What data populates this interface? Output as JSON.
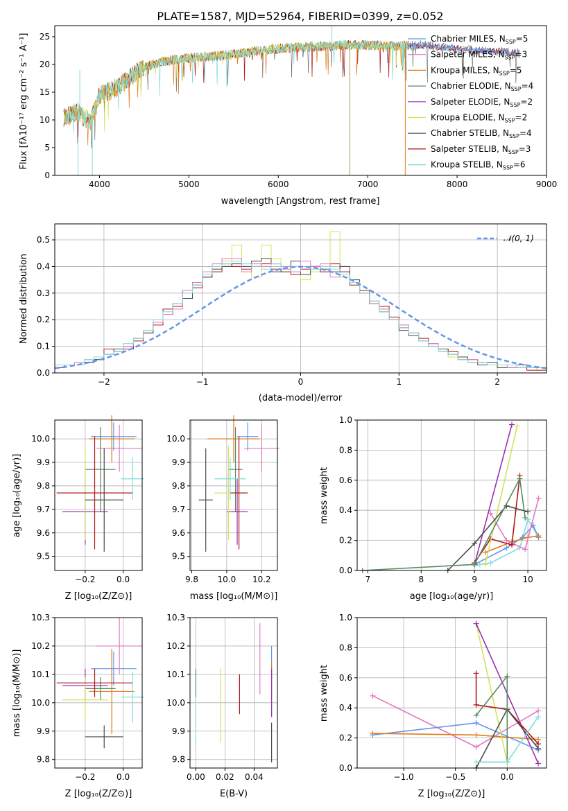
{
  "colors": {
    "Chabrier MILES": "#6495ed",
    "Salpeter MILES": "#e377c2",
    "Kroupa MILES": "#e07b1a",
    "Chabrier ELODIE": "#5a8a63",
    "Salpeter ELODIE": "#9b2fb0",
    "Kroupa ELODIE": "#d2e35a",
    "Chabrier STELIB": "#4a4a4a",
    "Salpeter STELIB": "#b21414",
    "Kroupa STELIB": "#7fdcdc",
    "gauss": "#6495ed"
  },
  "chart_data": [
    {
      "type": "line",
      "title": "PLATE=1587, MJD=52964, FIBERID=0399, z=0.052",
      "xlabel": "wavelength [Angstrom, rest frame]",
      "ylabel": "Flux [fλ10⁻¹⁷ erg cm⁻² s⁻¹ A⁻¹]",
      "xlim": [
        3500,
        9000
      ],
      "ylim": [
        0,
        27
      ],
      "xticks": [
        "4000",
        "5000",
        "6000",
        "7000",
        "8000",
        "9000"
      ],
      "yticks": [
        "0",
        "5",
        "10",
        "15",
        "20",
        "25"
      ],
      "legend_loc": "upper right",
      "legend": [
        {
          "label": "Chabrier MILES, N",
          "n": "5",
          "series": "Chabrier MILES"
        },
        {
          "label": "Salpeter MILES, N",
          "n": "3",
          "series": "Salpeter MILES"
        },
        {
          "label": "Kroupa MILES, N",
          "n": "5",
          "series": "Kroupa MILES"
        },
        {
          "label": "Chabrier ELODIE, N",
          "n": "4",
          "series": "Chabrier ELODIE"
        },
        {
          "label": "Salpeter ELODIE, N",
          "n": "2",
          "series": "Salpeter ELODIE"
        },
        {
          "label": "Kroupa ELODIE, N",
          "n": "2",
          "series": "Kroupa ELODIE"
        },
        {
          "label": "Chabrier STELIB, N",
          "n": "4",
          "series": "Chabrier STELIB"
        },
        {
          "label": "Salpeter STELIB, N",
          "n": "3",
          "series": "Salpeter STELIB"
        },
        {
          "label": "Kroupa STELIB, N",
          "n": "6",
          "series": "Kroupa STELIB"
        }
      ],
      "spectrum_continuum": {
        "x": [
          3600,
          3750,
          3900,
          3950,
          4000,
          4150,
          4300,
          4400,
          4500,
          4700,
          4900,
          5100,
          5300,
          5500,
          5800,
          6100,
          6400,
          6700,
          7000,
          7300,
          7600,
          7900,
          8200,
          8500,
          8700
        ],
        "y": [
          10.5,
          11.5,
          9.5,
          12,
          14.5,
          15.5,
          17,
          18.5,
          19.5,
          20.5,
          21,
          21.3,
          21.5,
          21.8,
          22.5,
          23,
          23.2,
          23.5,
          23.5,
          23.3,
          23.5,
          23.0,
          22.5,
          22.3,
          22.0
        ]
      },
      "spectrum_dips": [
        {
          "x": 3760,
          "y": 0
        },
        {
          "x": 3920,
          "y": 0
        },
        {
          "x": 6800,
          "y": 0
        },
        {
          "x": 7420,
          "y": 0
        },
        {
          "x": 3780,
          "y": 19
        },
        {
          "x": 6600,
          "y": 27
        }
      ]
    },
    {
      "type": "step",
      "xlabel": "(data-model)/error",
      "ylabel": "Normed distribution",
      "xlim": [
        -2.5,
        2.5
      ],
      "ylim": [
        0,
        0.56
      ],
      "xticks": [
        "−2",
        "−1",
        "0",
        "1",
        "2"
      ],
      "yticks": [
        "0.0",
        "0.1",
        "0.2",
        "0.3",
        "0.4",
        "0.5"
      ],
      "legend": "𝒩(0, 1)",
      "bin_width": 0.1,
      "bins_from": -2.5,
      "series_hist": [
        {
          "name": "Kroupa ELODIE",
          "values": [
            0.03,
            0.03,
            0.04,
            0.05,
            0.05,
            0.07,
            0.09,
            0.11,
            0.13,
            0.16,
            0.19,
            0.22,
            0.25,
            0.3,
            0.33,
            0.37,
            0.39,
            0.42,
            0.48,
            0.41,
            0.36,
            0.48,
            0.43,
            0.4,
            0.37,
            0.35,
            0.38,
            0.4,
            0.53,
            0.36,
            0.33,
            0.3,
            0.27,
            0.24,
            0.2,
            0.18,
            0.15,
            0.12,
            0.1,
            0.08,
            0.06,
            0.05,
            0.04,
            0.04,
            0.03,
            0.02,
            0.03,
            0.02,
            0.02,
            0.01
          ]
        },
        {
          "name": "Salpeter STELIB",
          "values": [
            0.02,
            0.03,
            0.03,
            0.04,
            0.05,
            0.09,
            0.08,
            0.09,
            0.12,
            0.15,
            0.18,
            0.24,
            0.25,
            0.31,
            0.32,
            0.36,
            0.38,
            0.41,
            0.4,
            0.39,
            0.4,
            0.41,
            0.39,
            0.38,
            0.37,
            0.39,
            0.4,
            0.38,
            0.41,
            0.38,
            0.33,
            0.31,
            0.26,
            0.25,
            0.21,
            0.17,
            0.15,
            0.13,
            0.1,
            0.09,
            0.08,
            0.05,
            0.05,
            0.04,
            0.03,
            0.03,
            0.03,
            0.02,
            0.01,
            0.01
          ]
        },
        {
          "name": "Chabrier STELIB",
          "values": [
            0.03,
            0.03,
            0.03,
            0.04,
            0.05,
            0.07,
            0.09,
            0.1,
            0.13,
            0.15,
            0.19,
            0.22,
            0.26,
            0.28,
            0.33,
            0.36,
            0.39,
            0.4,
            0.41,
            0.4,
            0.42,
            0.43,
            0.38,
            0.39,
            0.42,
            0.37,
            0.4,
            0.39,
            0.38,
            0.4,
            0.35,
            0.3,
            0.27,
            0.23,
            0.2,
            0.16,
            0.14,
            0.12,
            0.11,
            0.09,
            0.07,
            0.06,
            0.04,
            0.03,
            0.04,
            0.02,
            0.02,
            0.03,
            0.02,
            0.02
          ]
        },
        {
          "name": "Salpeter MILES",
          "values": [
            0.03,
            0.03,
            0.04,
            0.05,
            0.06,
            0.07,
            0.08,
            0.1,
            0.13,
            0.16,
            0.19,
            0.22,
            0.24,
            0.31,
            0.34,
            0.38,
            0.41,
            0.43,
            0.43,
            0.38,
            0.41,
            0.4,
            0.41,
            0.4,
            0.38,
            0.42,
            0.4,
            0.41,
            0.36,
            0.37,
            0.34,
            0.3,
            0.26,
            0.24,
            0.2,
            0.18,
            0.15,
            0.12,
            0.11,
            0.08,
            0.07,
            0.05,
            0.05,
            0.04,
            0.03,
            0.03,
            0.02,
            0.02,
            0.02,
            0.02
          ]
        },
        {
          "name": "Kroupa STELIB",
          "values": [
            0.03,
            0.03,
            0.03,
            0.05,
            0.06,
            0.07,
            0.08,
            0.11,
            0.13,
            0.16,
            0.2,
            0.23,
            0.26,
            0.3,
            0.33,
            0.37,
            0.4,
            0.41,
            0.42,
            0.41,
            0.4,
            0.39,
            0.41,
            0.39,
            0.4,
            0.4,
            0.39,
            0.4,
            0.39,
            0.37,
            0.34,
            0.3,
            0.27,
            0.23,
            0.2,
            0.17,
            0.15,
            0.12,
            0.1,
            0.08,
            0.07,
            0.05,
            0.04,
            0.04,
            0.03,
            0.03,
            0.03,
            0.02,
            0.02,
            0.02
          ]
        }
      ],
      "gaussian": {
        "mu": 0,
        "sigma": 1
      }
    },
    {
      "type": "scatter_errorbar",
      "xlabel": "Z [log₁₀(Z/Z⊙)]",
      "ylabel": "age  [log₁₀(age/yr)]",
      "xlim": [
        -0.36,
        0.1
      ],
      "ylim": [
        9.44,
        10.08
      ],
      "xticks": [
        "−0.2",
        "0.0"
      ],
      "yticks": [
        "9.5",
        "9.6",
        "9.7",
        "9.8",
        "9.9",
        "10.0"
      ]
    },
    {
      "type": "scatter_errorbar",
      "xlabel": "mass [log₁₀(M/M⊙)]",
      "xlim": [
        9.79,
        10.29
      ],
      "ylim": [
        9.44,
        10.08
      ],
      "xticks": [
        "9.8",
        "10.0",
        "10.2"
      ],
      "yticks": [
        "9.5",
        "9.6",
        "9.7",
        "9.8",
        "9.9",
        "10.0"
      ]
    },
    {
      "type": "line",
      "xlabel": "age  [log₁₀(age/yr)]",
      "ylabel": "mass weight",
      "xlim": [
        6.8,
        10.35
      ],
      "ylim": [
        0,
        1
      ],
      "xticks": [
        "7",
        "8",
        "9",
        "10"
      ],
      "yticks": [
        "0.0",
        "0.2",
        "0.4",
        "0.6",
        "0.8",
        "1.0"
      ],
      "series": [
        {
          "name": "Kroupa STELIB",
          "x": [
            9.0,
            9.1,
            9.3,
            9.85,
            10.0,
            10.2
          ],
          "y": [
            0.03,
            0.04,
            0.05,
            0.15,
            0.34,
            0.22
          ]
        },
        {
          "name": "Chabrier MILES",
          "x": [
            9.0,
            9.6,
            9.9,
            10.1,
            10.2
          ],
          "y": [
            0.04,
            0.15,
            0.22,
            0.3,
            0.22
          ]
        },
        {
          "name": "Kroupa MILES",
          "x": [
            9.2,
            9.7,
            10.0,
            10.2
          ],
          "y": [
            0.12,
            0.19,
            0.22,
            0.23
          ]
        },
        {
          "name": "Salpeter MILES",
          "x": [
            9.3,
            9.6,
            9.95,
            10.2
          ],
          "y": [
            0.38,
            0.2,
            0.14,
            0.48
          ]
        },
        {
          "name": "Salpeter STELIB",
          "x": [
            9.0,
            9.3,
            9.7,
            9.85
          ],
          "y": [
            0.05,
            0.21,
            0.17,
            0.63
          ]
        },
        {
          "name": "Salpeter ELODIE",
          "x": [
            9.0,
            9.7
          ],
          "y": [
            0.04,
            0.97
          ]
        },
        {
          "name": "Kroupa ELODIE",
          "x": [
            9.2,
            9.8
          ],
          "y": [
            0.04,
            0.96
          ]
        },
        {
          "name": "Chabrier STELIB",
          "x": [
            8.5,
            9.0,
            9.6,
            10.0
          ],
          "y": [
            0.0,
            0.18,
            0.43,
            0.39
          ]
        },
        {
          "name": "Chabrier ELODIE",
          "x": [
            6.9,
            9.0,
            9.85,
            9.95
          ],
          "y": [
            0.0,
            0.04,
            0.61,
            0.35
          ]
        }
      ]
    },
    {
      "type": "scatter_errorbar",
      "xlabel": "Z [log₁₀(Z/Z⊙)]",
      "ylabel": "mass [log₁₀(M/M⊙)]",
      "xlim": [
        -0.36,
        0.1
      ],
      "ylim": [
        9.77,
        10.3
      ],
      "xticks": [
        "−0.2",
        "0.0"
      ],
      "yticks": [
        "9.8",
        "9.9",
        "10.0",
        "10.1",
        "10.2",
        "10.3"
      ]
    },
    {
      "type": "errorbar",
      "xlabel": "E(B-V)",
      "xlim": [
        -0.004,
        0.056
      ],
      "ylim": [
        9.77,
        10.3
      ],
      "xticks": [
        "0.00",
        "0.02",
        "0.04"
      ],
      "yticks": [
        "9.8",
        "9.9",
        "10.0",
        "10.1",
        "10.2",
        "10.3"
      ]
    },
    {
      "type": "line",
      "xlabel": "Z [log₁₀(Z/Z⊙)]",
      "ylabel": "mass weight",
      "xlim": [
        -1.45,
        0.38
      ],
      "ylim": [
        0,
        1
      ],
      "xticks": [
        "−1.0",
        "−0.5",
        "0.0"
      ],
      "yticks": [
        "0.0",
        "0.2",
        "0.4",
        "0.6",
        "0.8",
        "1.0"
      ],
      "series": [
        {
          "name": "Salpeter MILES",
          "x": [
            -1.3,
            -0.3,
            0.3
          ],
          "y": [
            0.48,
            0.14,
            0.38
          ]
        },
        {
          "name": "Chabrier MILES",
          "x": [
            -1.3,
            -0.3,
            0.3
          ],
          "y": [
            0.22,
            0.3,
            0.12
          ]
        },
        {
          "name": "Kroupa MILES",
          "x": [
            -1.3,
            -0.3,
            0.3
          ],
          "y": [
            0.23,
            0.22,
            0.19
          ]
        },
        {
          "name": "Kroupa ELODIE",
          "x": [
            -0.3,
            0.0
          ],
          "y": [
            0.96,
            0.04
          ]
        },
        {
          "name": "Salpeter ELODIE",
          "x": [
            -0.3,
            0.3
          ],
          "y": [
            0.96,
            0.03
          ]
        },
        {
          "name": "Salpeter STELIB",
          "x": [
            -0.3,
            -0.3,
            0.0,
            0.3
          ],
          "y": [
            0.63,
            0.42,
            0.39,
            0.16
          ]
        },
        {
          "name": "Chabrier STELIB",
          "x": [
            -0.3,
            0.0,
            0.3
          ],
          "y": [
            0.0,
            0.39,
            0.13
          ]
        },
        {
          "name": "Chabrier ELODIE",
          "x": [
            -0.3,
            0.0,
            0.0
          ],
          "y": [
            0.35,
            0.61,
            0.04
          ]
        },
        {
          "name": "Kroupa STELIB",
          "x": [
            -0.3,
            0.0,
            0.3
          ],
          "y": [
            0.04,
            0.04,
            0.34
          ]
        }
      ]
    }
  ],
  "errorbars": [
    {
      "name": "Chabrier MILES",
      "Z": -0.05,
      "Zerr": 0.12,
      "age": 10.01,
      "ageerr": 0.06,
      "mass": 10.12,
      "masserr": 0.06,
      "ebv": 0.052,
      "masslo": 10.02,
      "masshi": 10.2
    },
    {
      "name": "Salpeter MILES",
      "Z": -0.02,
      "Zerr": 0.12,
      "age": 9.96,
      "ageerr": 0.1,
      "mass": 10.2,
      "masserr": 0.1,
      "ebv": 0.044,
      "masslo": 10.03,
      "masshi": 10.28
    },
    {
      "name": "Kroupa MILES",
      "Z": -0.06,
      "Zerr": 0.12,
      "age": 10.0,
      "ageerr": 0.1,
      "mass": 10.04,
      "masserr": 0.15,
      "ebv": 0.052,
      "masslo": 9.95,
      "masshi": 10.14
    },
    {
      "name": "Chabrier ELODIE",
      "Z": -0.12,
      "Zerr": 0.08,
      "age": 9.87,
      "ageerr": 0.18,
      "mass": 10.05,
      "masserr": 0.04,
      "ebv": 0.0,
      "masslo": 10.02,
      "masshi": 10.12
    },
    {
      "name": "Salpeter ELODIE",
      "Z": -0.2,
      "Zerr": 0.12,
      "age": 9.69,
      "ageerr": 0.14,
      "mass": 10.06,
      "masserr": 0.06,
      "ebv": 0.052,
      "masslo": 9.95,
      "masshi": 10.12
    },
    {
      "name": "Kroupa ELODIE",
      "Z": -0.2,
      "Zerr": 0.12,
      "age": 9.77,
      "ageerr": 0.2,
      "mass": 10.01,
      "masserr": 0.08,
      "ebv": 0.017,
      "masslo": 9.86,
      "masshi": 10.12
    },
    {
      "name": "Chabrier STELIB",
      "Z": -0.1,
      "Zerr": 0.1,
      "age": 9.74,
      "ageerr": 0.22,
      "mass": 9.88,
      "masserr": 0.04,
      "ebv": 0.052,
      "masslo": 9.79,
      "masshi": 9.93
    },
    {
      "name": "Salpeter STELIB",
      "Z": -0.15,
      "Zerr": 0.2,
      "age": 9.77,
      "ageerr": 0.24,
      "mass": 10.07,
      "masserr": 0.05,
      "ebv": 0.03,
      "masslo": 9.96,
      "masshi": 10.1
    },
    {
      "name": "Kroupa STELIB",
      "Z": 0.05,
      "Zerr": 0.06,
      "age": 9.83,
      "ageerr": 0.09,
      "mass": 10.02,
      "masserr": 0.09,
      "ebv": 0.0,
      "masslo": 9.86,
      "masshi": 10.02
    }
  ]
}
